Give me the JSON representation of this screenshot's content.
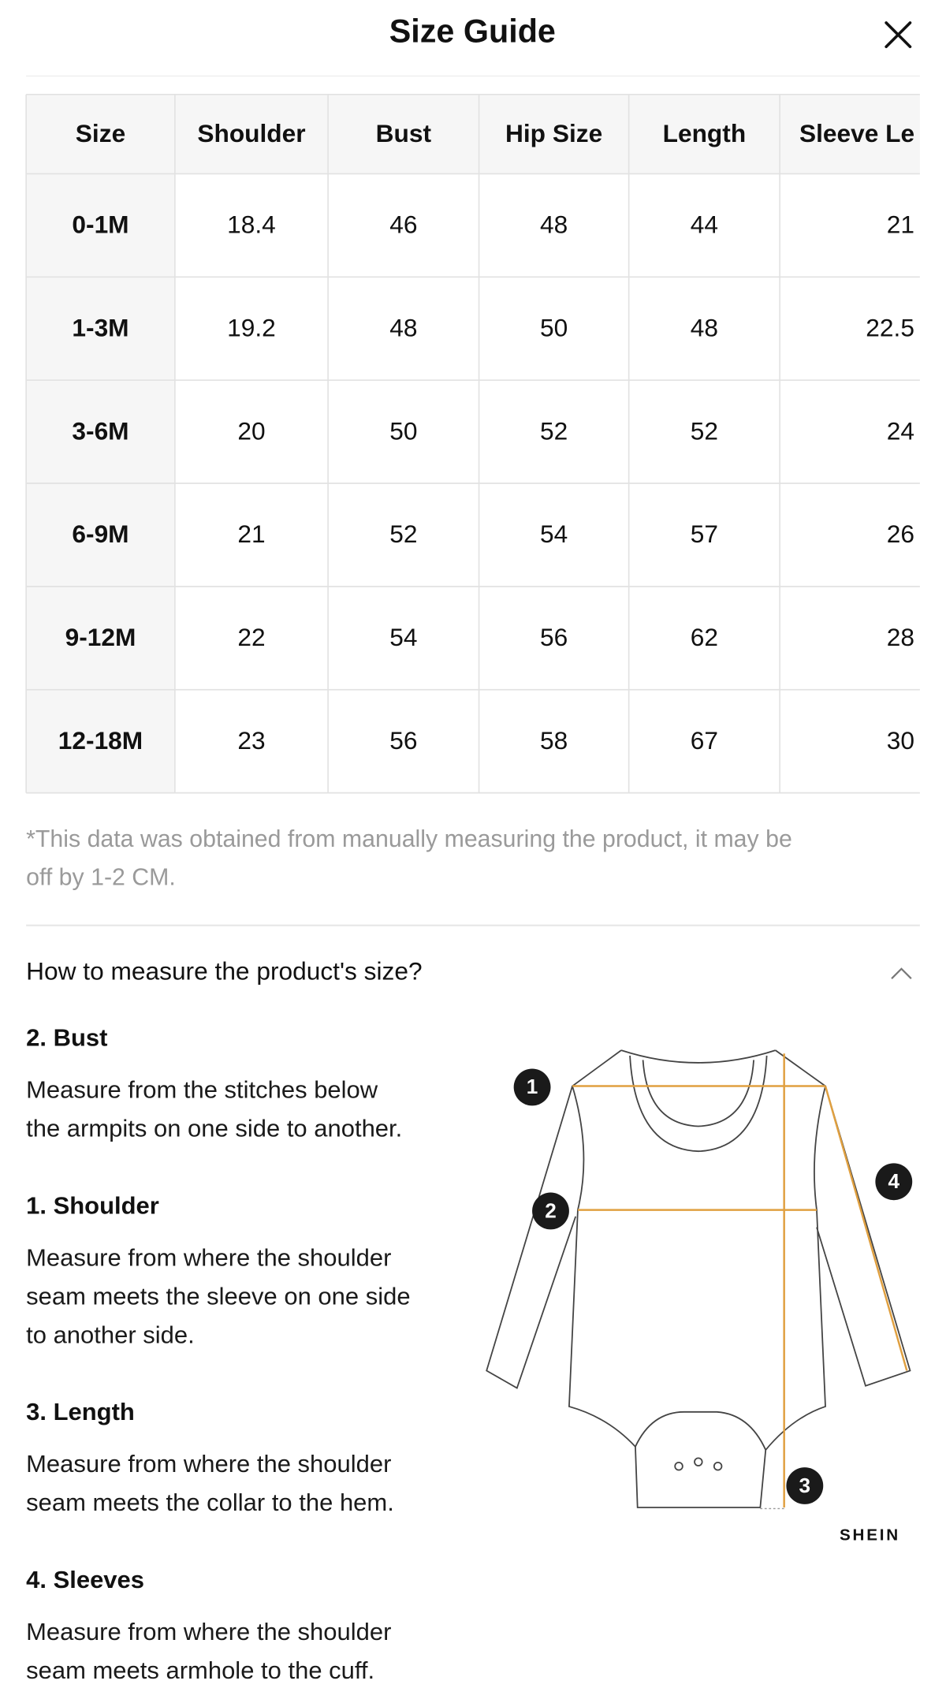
{
  "header": {
    "title": "Size Guide"
  },
  "table": {
    "columns": [
      "Size",
      "Shoulder",
      "Bust",
      "Hip Size",
      "Length",
      "Sleeve Le"
    ],
    "rows": [
      [
        "0-1M",
        18.4,
        46,
        48,
        44,
        21
      ],
      [
        "1-3M",
        19.2,
        48,
        50,
        48,
        22.5
      ],
      [
        "3-6M",
        20,
        50,
        52,
        52,
        24
      ],
      [
        "6-9M",
        21,
        52,
        54,
        57,
        26
      ],
      [
        "9-12M",
        22,
        54,
        56,
        62,
        28
      ],
      [
        "12-18M",
        23,
        56,
        58,
        67,
        30
      ]
    ]
  },
  "note": {
    "lines": [
      "*This data was obtained from manually measuring the product, it may be",
      "off by 1-2 CM."
    ]
  },
  "measure": {
    "heading": "How to measure the product's size?",
    "sections": [
      {
        "title": "2. Bust",
        "lines": [
          "Measure from the stitches below",
          "the armpits on one side to another."
        ]
      },
      {
        "title": "1. Shoulder",
        "lines": [
          "Measure from where the shoulder",
          "seam meets the sleeve on one side",
          "to another side."
        ]
      },
      {
        "title": "3. Length",
        "lines": [
          "Measure from where the shoulder",
          "seam meets the collar to the hem."
        ]
      },
      {
        "title": "4. Sleeves",
        "lines": [
          "Measure from where the shoulder",
          "seam meets armhole to the cuff."
        ]
      }
    ],
    "markers": [
      "1",
      "2",
      "3",
      "4"
    ],
    "brand": "SHEIN"
  }
}
